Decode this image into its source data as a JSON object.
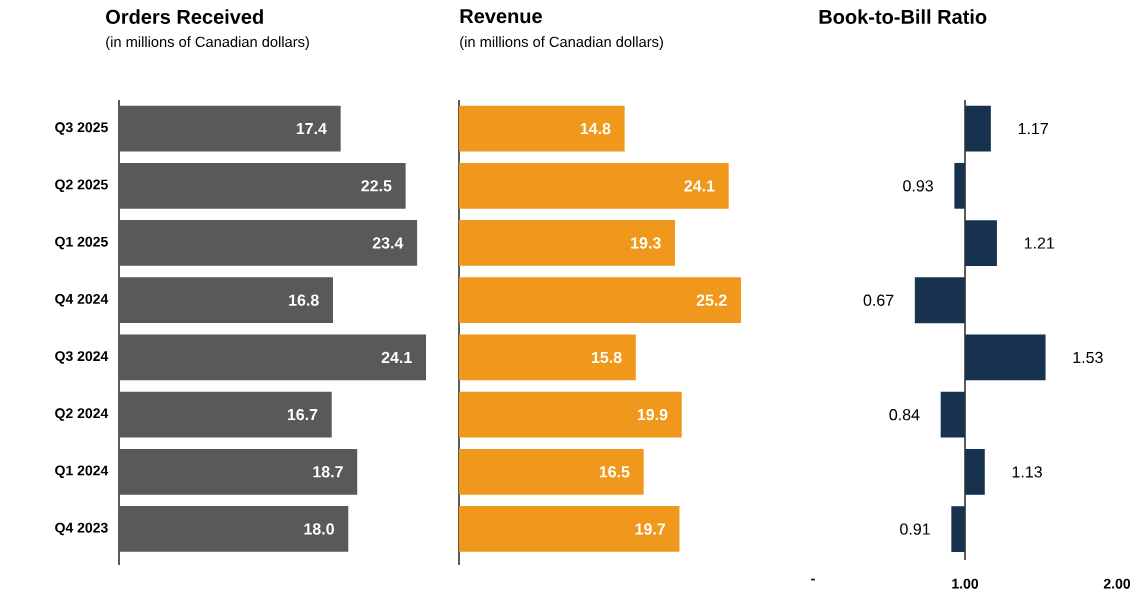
{
  "chart_data": [
    {
      "type": "bar",
      "orientation": "horizontal",
      "title": "Orders Received",
      "subtitle": "(in millions of Canadian dollars)",
      "categories": [
        "Q3 2025",
        "Q2 2025",
        "Q1 2025",
        "Q4 2024",
        "Q3 2024",
        "Q2 2024",
        "Q1 2024",
        "Q4 2023"
      ],
      "values": [
        17.4,
        22.5,
        23.4,
        16.8,
        24.1,
        16.7,
        18.7,
        18.0
      ],
      "value_labels": [
        "17.4",
        "22.5",
        "23.4",
        "16.8",
        "24.1",
        "16.7",
        "18.7",
        "18.0"
      ],
      "color": "#595959",
      "tick_labels": "y"
    },
    {
      "type": "bar",
      "orientation": "horizontal",
      "title": "Revenue",
      "subtitle": "(in millions of Canadian dollars)",
      "categories": [
        null,
        null,
        null,
        null,
        null,
        null,
        null,
        null
      ],
      "values": [
        14.8,
        24.1,
        19.3,
        25.2,
        15.8,
        19.9,
        16.5,
        19.7
      ],
      "value_labels": [
        "14.8",
        "24.1",
        "19.3",
        "25.2",
        "15.8",
        "19.9",
        "16.5",
        "19.7"
      ],
      "color": "#f0981c",
      "tick_labels": false
    },
    {
      "type": "bar",
      "orientation": "horizontal",
      "title": "Book-to-Bill Ratio",
      "categories": [
        null,
        null,
        null,
        null,
        null,
        null,
        null,
        null
      ],
      "base": [
        1,
        1,
        1,
        1,
        1,
        1,
        1,
        1
      ],
      "values": [
        0.17,
        -0.07,
        0.21,
        -0.33,
        0.53,
        -0.16,
        0.13,
        -0.09
      ],
      "value_labels": [
        "1.17",
        "0.93",
        "1.21",
        "0.67",
        "1.53",
        "0.84",
        "1.13",
        "0.91"
      ],
      "color": "#17324f",
      "xlim": [
        0,
        2
      ],
      "xticks": [
        {
          "value": 0,
          "label": "-"
        },
        {
          "value": 1,
          "label": "1.00"
        },
        {
          "value": 2,
          "label": "2.00"
        }
      ],
      "ref_lines": [
        {
          "axis": "x",
          "value": 1,
          "color": "#333333"
        }
      ],
      "tick_labels": "x"
    }
  ]
}
